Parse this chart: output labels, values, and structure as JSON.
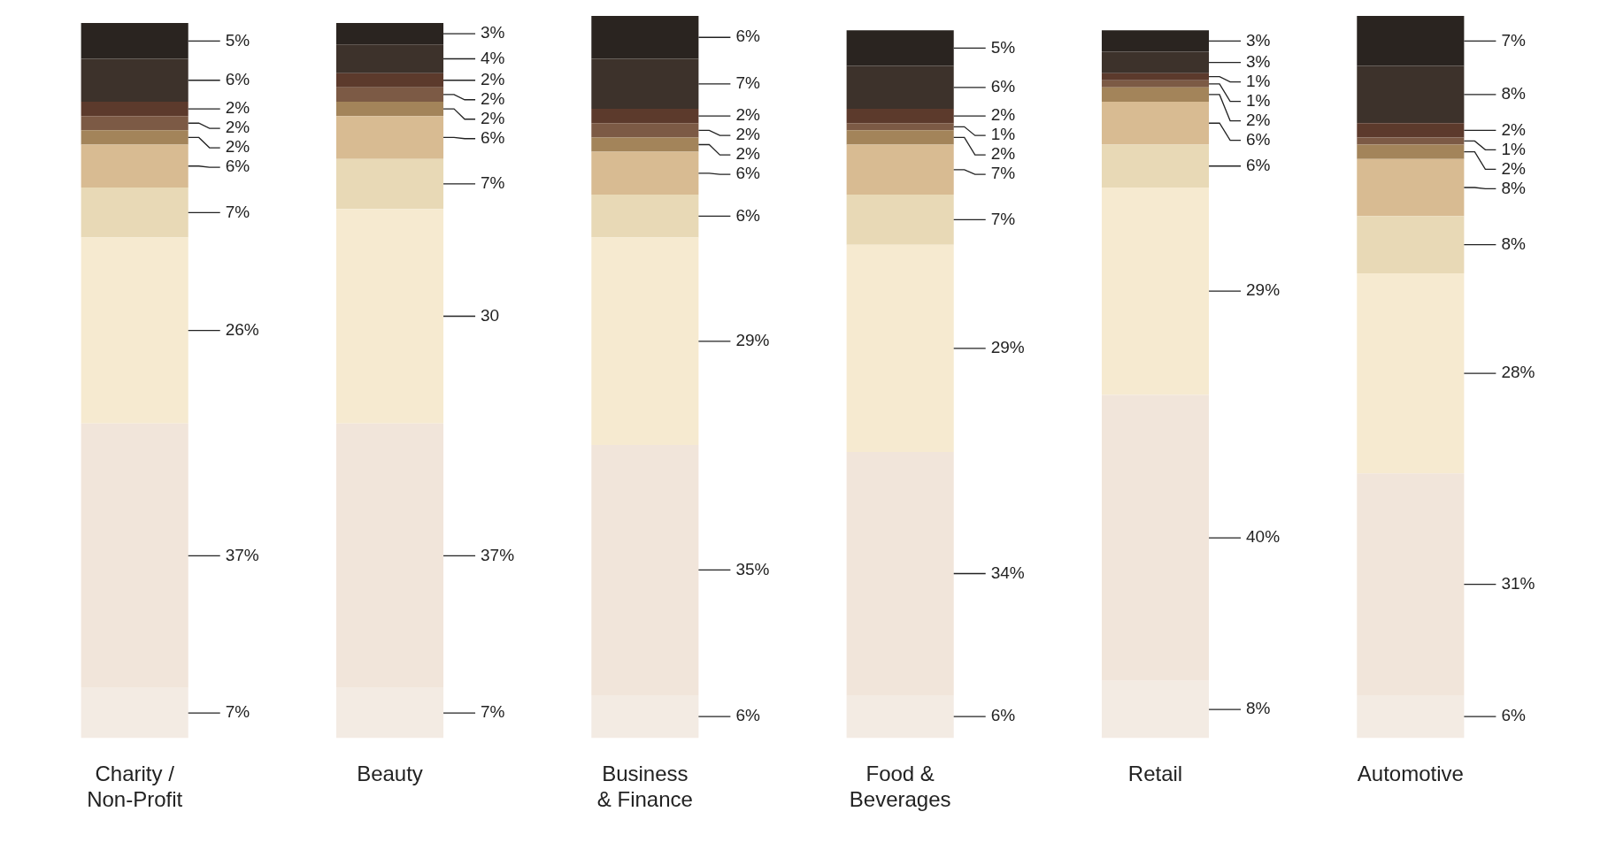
{
  "chart_data": {
    "type": "bar",
    "stacked": true,
    "categories": [
      "Charity / Non-Profit",
      "Beauty",
      "Business & Finance",
      "Food & Beverages",
      "Retail",
      "Automotive"
    ],
    "series": [
      {
        "color": "#f3ebe3",
        "values": [
          7,
          7,
          6,
          6,
          8,
          6
        ],
        "value_labels": [
          "7%",
          "7%",
          "6%",
          "6%",
          "8%",
          "6%"
        ]
      },
      {
        "color": "#f1e5da",
        "values": [
          37,
          37,
          35,
          34,
          40,
          31
        ],
        "value_labels": [
          "37%",
          "37%",
          "35%",
          "34%",
          "40%",
          "31%"
        ]
      },
      {
        "color": "#f6ead0",
        "values": [
          26,
          30,
          29,
          29,
          29,
          28
        ],
        "value_labels": [
          "26%",
          "30",
          "29%",
          "29%",
          "29%",
          "28%"
        ]
      },
      {
        "color": "#e8d9b6",
        "values": [
          7,
          7,
          6,
          7,
          6,
          8
        ],
        "value_labels": [
          "7%",
          "7%",
          "6%",
          "7%",
          "6%",
          "8%"
        ]
      },
      {
        "color": "#d8bb92",
        "values": [
          6,
          6,
          6,
          7,
          6,
          8
        ],
        "value_labels": [
          "6%",
          "6%",
          "6%",
          "7%",
          "6%",
          "8%"
        ]
      },
      {
        "color": "#a3845a",
        "values": [
          2,
          2,
          2,
          2,
          2,
          2
        ],
        "value_labels": [
          "2%",
          "2%",
          "2%",
          "2%",
          "2%",
          "2%"
        ]
      },
      {
        "color": "#7c5a45",
        "values": [
          2,
          2,
          2,
          1,
          1,
          1
        ],
        "value_labels": [
          "2%",
          "2%",
          "2%",
          "1%",
          "1%",
          "1%"
        ]
      },
      {
        "color": "#5c3a2c",
        "values": [
          2,
          2,
          2,
          2,
          1,
          2
        ],
        "value_labels": [
          "2%",
          "2%",
          "2%",
          "2%",
          "1%",
          "2%"
        ]
      },
      {
        "color": "#3d322b",
        "values": [
          6,
          4,
          7,
          6,
          3,
          8
        ],
        "value_labels": [
          "6%",
          "4%",
          "7%",
          "6%",
          "3%",
          "8%"
        ]
      },
      {
        "color": "#2a2420",
        "values": [
          5,
          3,
          6,
          5,
          3,
          7
        ],
        "value_labels": [
          "5%",
          "3%",
          "6%",
          "5%",
          "3%",
          "7%"
        ]
      }
    ],
    "grid": false,
    "legend": false
  }
}
